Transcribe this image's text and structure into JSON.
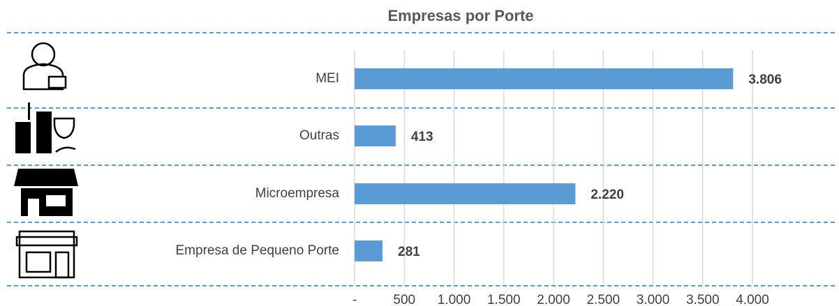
{
  "chart_data": {
    "type": "bar",
    "orientation": "horizontal",
    "title": "Empresas por Porte",
    "categories": [
      "MEI",
      "Outras",
      "Microempresa",
      "Empresa de Pequeno Porte"
    ],
    "values": [
      3806,
      413,
      2220,
      281
    ],
    "value_labels": [
      "3.806",
      "413",
      "2.220",
      "281"
    ],
    "color": "#5b9bd5",
    "xlim": [
      0,
      4000
    ],
    "xticks": [
      {
        "value": 0,
        "label": "-"
      },
      500,
      {
        "value": 1000,
        "label": "1.000"
      },
      {
        "value": 1500,
        "label": "1.500"
      },
      {
        "value": 2000,
        "label": "2.000"
      },
      {
        "value": 2500,
        "label": "2.500"
      },
      {
        "value": 3000,
        "label": "3.000"
      },
      {
        "value": 3500,
        "label": "3.500"
      },
      {
        "value": 4000,
        "label": "4.000"
      }
    ],
    "grid": true
  }
}
